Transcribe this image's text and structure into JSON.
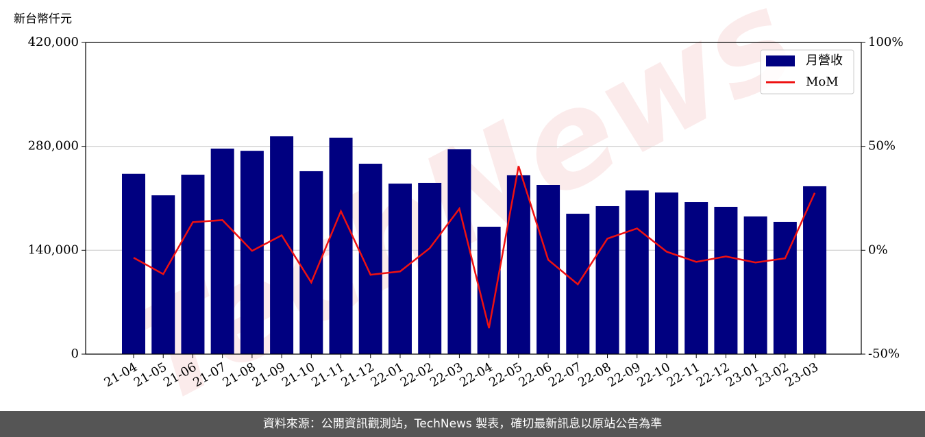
{
  "chart_data": {
    "type": "bar",
    "y_unit_label": "新台幣仟元",
    "watermark": "TechNews",
    "source": "資料來源：公開資訊觀測站，TechNews 製表，確切最新訊息以原站公告為準",
    "categories": [
      "21-04",
      "21-05",
      "21-06",
      "21-07",
      "21-08",
      "21-09",
      "21-10",
      "21-11",
      "21-12",
      "22-01",
      "22-02",
      "22-03",
      "22-04",
      "22-05",
      "22-06",
      "22-07",
      "22-08",
      "22-09",
      "22-10",
      "22-11",
      "22-12",
      "23-01",
      "23-02",
      "23-03"
    ],
    "series": [
      {
        "name": "月營收",
        "type": "bar",
        "color": "#000080",
        "values": [
          243000,
          214000,
          241800,
          277000,
          274000,
          293500,
          246500,
          291700,
          256600,
          229800,
          230800,
          276000,
          171700,
          241000,
          228000,
          189200,
          199400,
          220600,
          217800,
          204900,
          198500,
          185500,
          178200,
          226200
        ]
      },
      {
        "name": "MoM",
        "type": "line",
        "axis": "y2",
        "color": "#ee1111",
        "values": [
          -3.6,
          -11.5,
          13.5,
          14.5,
          -0.3,
          7.2,
          -15.5,
          18.8,
          -11.8,
          -10.2,
          1.0,
          20,
          -37.5,
          40.5,
          -4.6,
          -16.4,
          5.6,
          10.5,
          -0.7,
          -5.6,
          -3.0,
          -5.9,
          -3.9,
          27.6
        ]
      }
    ],
    "ylim": [
      0,
      420000
    ],
    "yticks": [
      0,
      {
        "value": 140000,
        "label": "140,000"
      },
      {
        "value": 280000,
        "label": "280,000"
      },
      {
        "value": 420000,
        "label": "420,000"
      }
    ],
    "y2lim": [
      -50,
      100
    ],
    "y2ticks": [
      {
        "value": -50,
        "label": "-50%"
      },
      {
        "value": 0,
        "label": "0%"
      },
      {
        "value": 50,
        "label": "50%"
      },
      {
        "value": 100,
        "label": "100%"
      }
    ],
    "grid": true,
    "legend": "upper right"
  }
}
